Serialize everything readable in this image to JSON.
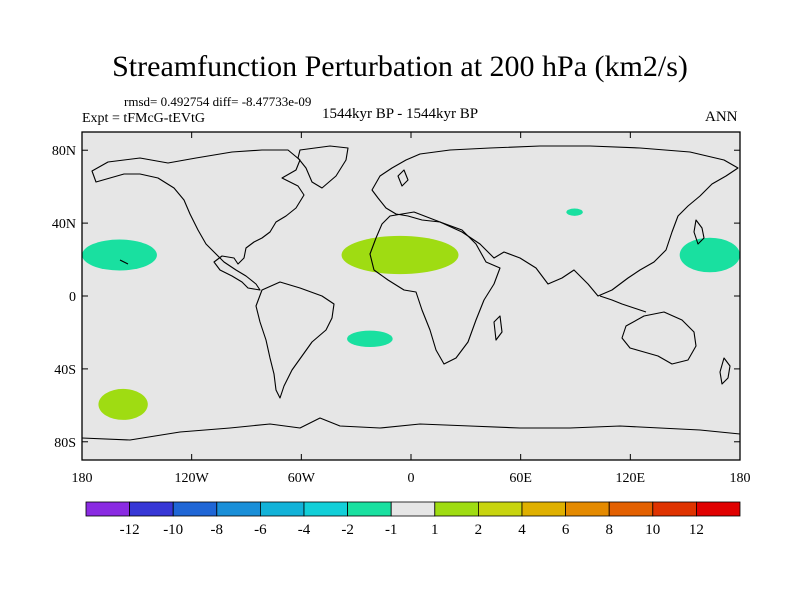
{
  "title": "Streamfunction Perturbation at 200 hPa (km2/s)",
  "stats": "rmsd= 0.492754  diff= -8.47733e-09",
  "experiment": "Expt = tFMcG-tEVtG",
  "period": "1544kyr BP - 1544kyr BP",
  "season": "ANN",
  "colors": {
    "background_field": "#e6e6e6",
    "coast": "#000000",
    "frame": "#000000"
  },
  "chart_data": {
    "type": "heatmap",
    "projection": "cylindrical-equidistant",
    "title": "Streamfunction Perturbation at 200 hPa (km2/s)",
    "xlim": [
      -180,
      180
    ],
    "ylim": [
      -90,
      90
    ],
    "x_ticks": [
      {
        "value": -180,
        "label": "180"
      },
      {
        "value": -120,
        "label": "120W"
      },
      {
        "value": -60,
        "label": "60W"
      },
      {
        "value": 0,
        "label": "0"
      },
      {
        "value": 60,
        "label": "60E"
      },
      {
        "value": 120,
        "label": "120E"
      },
      {
        "value": 180,
        "label": "180"
      }
    ],
    "y_ticks": [
      {
        "value": 80,
        "label": "80N"
      },
      {
        "value": 40,
        "label": "40N"
      },
      {
        "value": 0,
        "label": "0"
      },
      {
        "value": -40,
        "label": "40S"
      },
      {
        "value": -80,
        "label": "80S"
      }
    ],
    "colorbar": {
      "levels": [
        "-12",
        "-10",
        "-8",
        "-6",
        "-4",
        "-2",
        "-1",
        "1",
        "2",
        "4",
        "6",
        "8",
        "10",
        "12"
      ],
      "colors": [
        "#8a2be2",
        "#3737d6",
        "#1f66d6",
        "#1a8fd8",
        "#12b2d8",
        "#12cfd8",
        "#19e0a0",
        "#e6e6e6",
        "#9fdc12",
        "#c8d40f",
        "#dfb000",
        "#e48a00",
        "#e36000",
        "#df3300",
        "#e00000"
      ]
    },
    "regions": [
      {
        "name": "north-pacific-east",
        "category": "-2 to -1",
        "color": "#19e0a0",
        "lon_min": -180,
        "lon_max": -139,
        "lat_min": 14,
        "lat_max": 31
      },
      {
        "name": "north-pacific-west",
        "category": "-2 to -1",
        "color": "#19e0a0",
        "lon_min": 147,
        "lon_max": 180,
        "lat_min": 13,
        "lat_max": 32
      },
      {
        "name": "north-africa",
        "category": "1 to 2",
        "color": "#9fdc12",
        "lon_min": -38,
        "lon_max": 26,
        "lat_min": 12,
        "lat_max": 33
      },
      {
        "name": "central-asia",
        "category": "-2 to -1",
        "color": "#19e0a0",
        "lon_min": 85,
        "lon_max": 94,
        "lat_min": 44,
        "lat_max": 48
      },
      {
        "name": "south-atlantic",
        "category": "-2 to -1",
        "color": "#19e0a0",
        "lon_min": -35,
        "lon_max": -10,
        "lat_min": -28,
        "lat_max": -19
      },
      {
        "name": "south-pacific",
        "category": "1 to 2",
        "color": "#9fdc12",
        "lon_min": -171,
        "lon_max": -144,
        "lat_min": -68,
        "lat_max": -51
      }
    ]
  }
}
